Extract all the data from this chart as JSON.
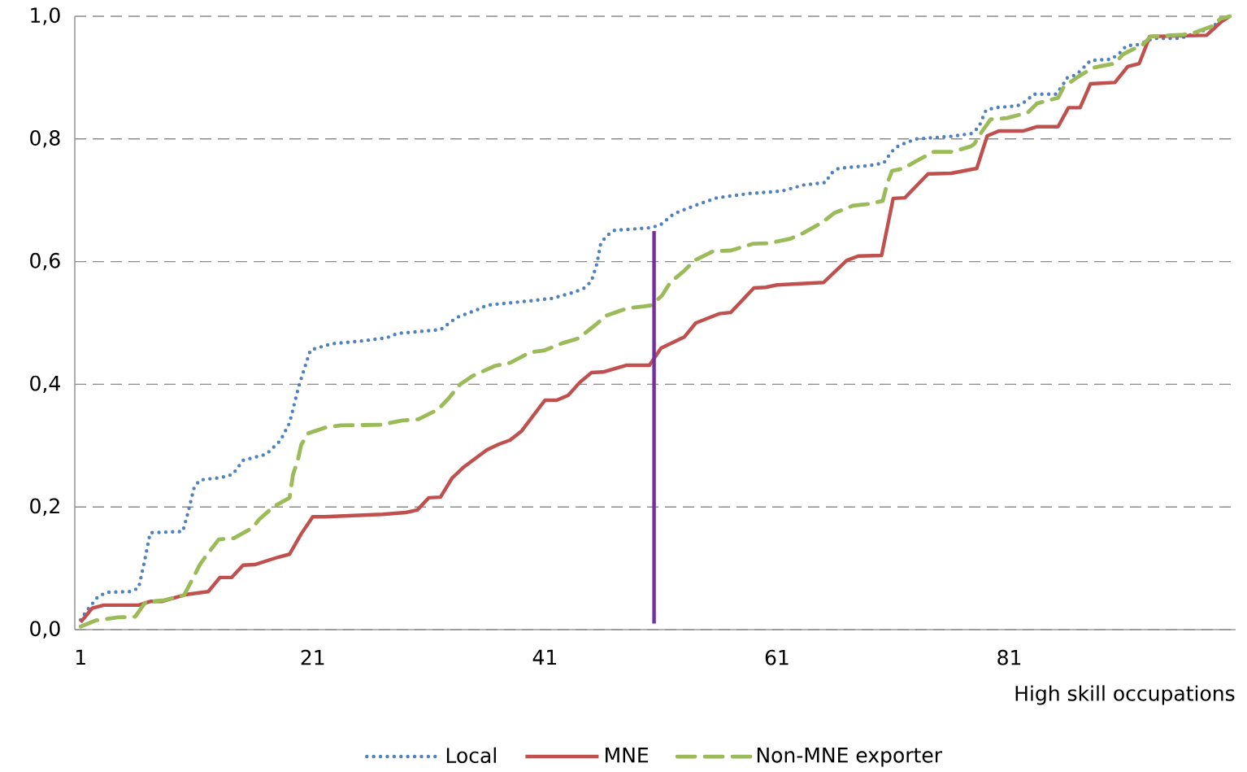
{
  "chart_data": {
    "type": "line",
    "xlabel": "High skill occupations",
    "xlim": [
      0.5,
      100.5
    ],
    "xticks": [
      1,
      21,
      41,
      61,
      81
    ],
    "ylim": [
      0,
      1
    ],
    "yticks": [
      {
        "value": 0,
        "label": "0,0"
      },
      {
        "value": 0.2,
        "label": "0,2"
      },
      {
        "value": 0.4,
        "label": "0,4"
      },
      {
        "value": 0.6,
        "label": "0,6"
      },
      {
        "value": 0.8,
        "label": "0,8"
      },
      {
        "value": 1,
        "label": "1,0"
      }
    ],
    "grid": "y",
    "legend": "bottom",
    "series": [
      {
        "name": "Local",
        "color": "#4f81bd",
        "line_style": "dotted",
        "x": [
          1,
          1.5,
          2.5,
          3.3,
          5.3,
          6,
          6.5,
          7,
          9.8,
          10.2,
          10.8,
          11.3,
          13.1,
          14.1,
          15,
          17,
          18.2,
          19,
          19.4,
          19.8,
          20.3,
          20.8,
          22.6,
          25.4,
          27.4,
          28.3,
          32,
          33.4,
          35.1,
          36,
          39.7,
          41.6,
          43.5,
          44.4,
          45,
          45.5,
          45.8,
          46.3,
          47,
          49.9,
          50.9,
          52.1,
          54,
          55.8,
          58.6,
          61.4,
          63.3,
          65.2,
          65.6,
          66.3,
          69.1,
          70.2,
          70.7,
          71.2,
          72.1,
          73,
          75.9,
          77.8,
          78.4,
          78.7,
          79,
          79.8,
          81.7,
          82.4,
          83.1,
          85,
          85.6,
          85.9,
          86.8,
          88,
          89.8,
          90.5,
          91.1,
          92.2,
          93.4,
          95.7,
          97.5,
          98.5,
          99.4,
          100
        ],
        "values": [
          0.016,
          0.03,
          0.054,
          0.061,
          0.062,
          0.068,
          0.111,
          0.158,
          0.16,
          0.187,
          0.233,
          0.244,
          0.248,
          0.253,
          0.276,
          0.286,
          0.308,
          0.337,
          0.367,
          0.397,
          0.427,
          0.456,
          0.466,
          0.471,
          0.476,
          0.483,
          0.489,
          0.509,
          0.521,
          0.529,
          0.536,
          0.54,
          0.55,
          0.557,
          0.568,
          0.598,
          0.629,
          0.642,
          0.651,
          0.655,
          0.659,
          0.678,
          0.692,
          0.704,
          0.711,
          0.715,
          0.725,
          0.729,
          0.743,
          0.752,
          0.757,
          0.761,
          0.775,
          0.786,
          0.794,
          0.8,
          0.804,
          0.809,
          0.82,
          0.834,
          0.847,
          0.851,
          0.854,
          0.861,
          0.873,
          0.873,
          0.887,
          0.899,
          0.905,
          0.928,
          0.93,
          0.94,
          0.952,
          0.954,
          0.964,
          0.964,
          0.975,
          0.983,
          0.996,
          1.0
        ]
      },
      {
        "name": "MNE",
        "color": "#c0504d",
        "line_style": "solid",
        "x": [
          1,
          2,
          3,
          6,
          7,
          8,
          10,
          12,
          13,
          14,
          15,
          16,
          18,
          19,
          20,
          21,
          22,
          27,
          29,
          30,
          31,
          32,
          33,
          34,
          36,
          37,
          38,
          39,
          41,
          42,
          43,
          44,
          45,
          46,
          48,
          50,
          51,
          53,
          54,
          56,
          57,
          59,
          60,
          61,
          65,
          67,
          68,
          70,
          71,
          72,
          74,
          76,
          78.2,
          79.1,
          80.1,
          82.2,
          83.4,
          85.2,
          86.1,
          87.1,
          88,
          90.1,
          91.2,
          92.2,
          93.1,
          98,
          99.2,
          100
        ],
        "values": [
          0.012,
          0.035,
          0.04,
          0.04,
          0.046,
          0.046,
          0.057,
          0.062,
          0.085,
          0.085,
          0.105,
          0.106,
          0.118,
          0.123,
          0.156,
          0.184,
          0.184,
          0.188,
          0.191,
          0.195,
          0.215,
          0.216,
          0.247,
          0.265,
          0.293,
          0.302,
          0.309,
          0.324,
          0.374,
          0.374,
          0.382,
          0.403,
          0.419,
          0.42,
          0.431,
          0.431,
          0.459,
          0.477,
          0.5,
          0.515,
          0.517,
          0.557,
          0.558,
          0.562,
          0.566,
          0.602,
          0.609,
          0.61,
          0.703,
          0.704,
          0.743,
          0.744,
          0.752,
          0.805,
          0.813,
          0.813,
          0.82,
          0.82,
          0.851,
          0.851,
          0.89,
          0.892,
          0.918,
          0.923,
          0.967,
          0.969,
          0.99,
          1.0
        ]
      },
      {
        "name": "Non-MNE exporter",
        "color": "#9bbb59",
        "line_style": "dashed",
        "x": [
          1,
          2.3,
          4.2,
          5.7,
          6.6,
          8.2,
          9.9,
          10.6,
          11.3,
          12,
          12.9,
          14.2,
          15.8,
          16.4,
          17.6,
          19,
          19.3,
          19.7,
          20,
          20.6,
          22,
          23.4,
          26.9,
          28.7,
          30.1,
          31.8,
          32.7,
          33.7,
          34.8,
          36.7,
          38,
          39.7,
          40.9,
          42.5,
          43.9,
          45.3,
          46.3,
          48.1,
          49.5,
          50.2,
          51.1,
          51.8,
          53,
          53.9,
          55.5,
          57,
          58.9,
          60.3,
          62.1,
          63.2,
          64.9,
          65.9,
          67.5,
          68.9,
          70.1,
          70.5,
          70.9,
          71.9,
          72.9,
          74.5,
          76.1,
          77.7,
          78,
          78.5,
          79.4,
          80.8,
          82.6,
          83.4,
          85.2,
          85.7,
          86.9,
          88.2,
          90.1,
          90.8,
          92.5,
          93.2,
          96,
          96.9,
          98.5,
          99.2,
          100
        ],
        "values": [
          0.005,
          0.015,
          0.02,
          0.021,
          0.045,
          0.048,
          0.056,
          0.081,
          0.107,
          0.125,
          0.147,
          0.149,
          0.166,
          0.18,
          0.2,
          0.215,
          0.253,
          0.275,
          0.301,
          0.32,
          0.329,
          0.333,
          0.334,
          0.341,
          0.343,
          0.359,
          0.377,
          0.4,
          0.414,
          0.43,
          0.435,
          0.452,
          0.455,
          0.467,
          0.475,
          0.496,
          0.512,
          0.524,
          0.527,
          0.529,
          0.545,
          0.566,
          0.585,
          0.602,
          0.617,
          0.618,
          0.629,
          0.63,
          0.637,
          0.646,
          0.664,
          0.679,
          0.691,
          0.694,
          0.699,
          0.728,
          0.748,
          0.752,
          0.763,
          0.779,
          0.779,
          0.788,
          0.792,
          0.808,
          0.832,
          0.834,
          0.843,
          0.858,
          0.867,
          0.885,
          0.901,
          0.916,
          0.923,
          0.938,
          0.954,
          0.967,
          0.97,
          0.973,
          0.984,
          0.996,
          1.0
        ]
      },
      {
        "color": "#7030a0",
        "line_style": "solid",
        "x": [
          50.4,
          50.4
        ],
        "values": [
          0.01,
          0.65
        ]
      }
    ]
  }
}
